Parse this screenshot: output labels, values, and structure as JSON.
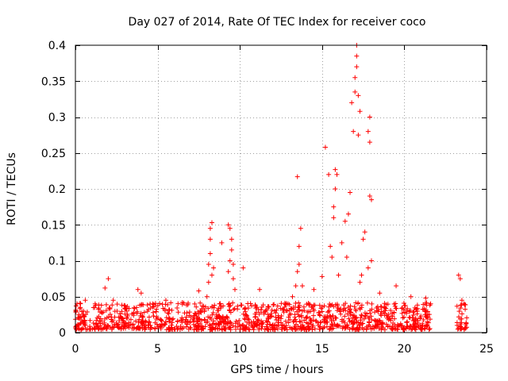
{
  "chart_data": {
    "type": "scatter",
    "title": "Day 027 of 2014, Rate Of TEC Index for receiver coco",
    "xlabel": "GPS time / hours",
    "ylabel": "ROTI / TECUs",
    "xlim": [
      0,
      25
    ],
    "ylim": [
      0,
      0.4
    ],
    "xticks": [
      0,
      5,
      10,
      15,
      20,
      25
    ],
    "yticks": [
      0,
      0.05,
      0.1,
      0.15,
      0.2,
      0.25,
      0.3,
      0.35,
      0.4
    ],
    "xtick_labels": [
      "0",
      "5",
      "10",
      "15",
      "20",
      "25"
    ],
    "ytick_labels": [
      "0",
      "0.05",
      "0.1",
      "0.15",
      "0.2",
      "0.25",
      "0.3",
      "0.35",
      "0.4"
    ],
    "grid": true,
    "marker": "+",
    "marker_color": "#ff0000",
    "series": [
      {
        "name": "ROTI",
        "segments": [
          {
            "x_start": 0.0,
            "x_end": 21.6,
            "baseline_max": 0.03,
            "description": "dense continuous data"
          },
          {
            "x_start": 23.2,
            "x_end": 23.8,
            "baseline_max": 0.03,
            "description": "short late segment"
          }
        ],
        "x": [
          0.1,
          0.3,
          0.6,
          1.2,
          1.8,
          2.0,
          2.3,
          3.8,
          4.0,
          5.5,
          6.5,
          7.5,
          8.0,
          8.1,
          8.2,
          8.2,
          8.3,
          8.2,
          8.1,
          8.3,
          8.4,
          8.9,
          9.3,
          9.4,
          9.5,
          9.5,
          9.4,
          9.6,
          9.3,
          9.6,
          9.7,
          10.2,
          11.2,
          13.2,
          13.4,
          13.5,
          13.6,
          13.6,
          13.5,
          13.7,
          13.8,
          14.5,
          15.0,
          15.2,
          15.4,
          15.5,
          15.6,
          15.7,
          15.7,
          15.8,
          15.8,
          15.9,
          16.0,
          16.2,
          16.4,
          16.5,
          16.6,
          16.7,
          16.8,
          16.9,
          17.0,
          17.0,
          17.1,
          17.1,
          17.1,
          17.2,
          17.2,
          17.3,
          17.3,
          17.4,
          17.5,
          17.6,
          17.8,
          17.8,
          17.9,
          17.9,
          17.9,
          18.0,
          18.0,
          18.5,
          19.5,
          20.4,
          21.3,
          23.3,
          23.4,
          23.5
        ],
        "y": [
          0.04,
          0.035,
          0.045,
          0.04,
          0.062,
          0.075,
          0.045,
          0.06,
          0.055,
          0.045,
          0.042,
          0.058,
          0.05,
          0.095,
          0.11,
          0.13,
          0.153,
          0.145,
          0.07,
          0.08,
          0.09,
          0.125,
          0.15,
          0.145,
          0.13,
          0.115,
          0.1,
          0.095,
          0.085,
          0.075,
          0.06,
          0.09,
          0.06,
          0.05,
          0.065,
          0.085,
          0.095,
          0.12,
          0.217,
          0.145,
          0.065,
          0.06,
          0.078,
          0.258,
          0.22,
          0.12,
          0.105,
          0.16,
          0.175,
          0.2,
          0.227,
          0.22,
          0.08,
          0.125,
          0.155,
          0.105,
          0.165,
          0.195,
          0.32,
          0.28,
          0.335,
          0.355,
          0.37,
          0.385,
          0.4,
          0.33,
          0.275,
          0.308,
          0.07,
          0.08,
          0.13,
          0.14,
          0.09,
          0.28,
          0.3,
          0.265,
          0.19,
          0.185,
          0.1,
          0.055,
          0.065,
          0.05,
          0.048,
          0.08,
          0.075,
          0.045
        ]
      }
    ]
  }
}
